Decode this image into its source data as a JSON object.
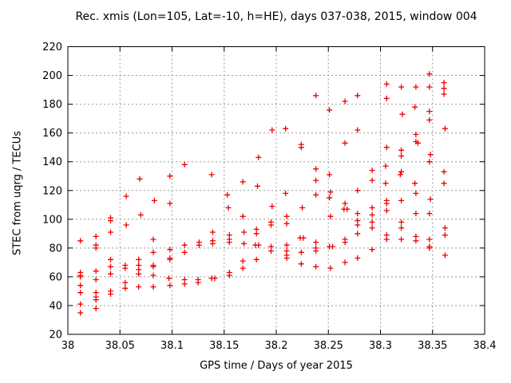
{
  "chart_data": {
    "type": "scatter",
    "title": "Rec. xmis (Lon=105, Lat=-10, h=HE), days 037-038, 2015, window 004",
    "xlabel": "GPS time / Days of year 2015",
    "ylabel": "STEC from uqrg / TECUs",
    "xlim": [
      38,
      38.4
    ],
    "ylim": [
      20,
      220
    ],
    "xticks": [
      38,
      38.05,
      38.1,
      38.15,
      38.2,
      38.25,
      38.3,
      38.35,
      38.4
    ],
    "xtick_labels": [
      "38",
      "38.05",
      "38.1",
      "38.15",
      "38.2",
      "38.25",
      "38.3",
      "38.35",
      "38.4"
    ],
    "yticks": [
      20,
      40,
      60,
      80,
      100,
      120,
      140,
      160,
      180,
      200,
      220
    ],
    "ytick_labels": [
      "20",
      "40",
      "60",
      "80",
      "100",
      "120",
      "140",
      "160",
      "180",
      "200",
      "220"
    ],
    "grid": true,
    "legend": false,
    "marker": "plus",
    "marker_color": "#f00000",
    "grid_color": "#999999",
    "axis_color": "#000000",
    "series": [
      {
        "name": "STEC from uqrg",
        "points": [
          [
            38.012,
            85
          ],
          [
            38.012,
            63
          ],
          [
            38.012,
            61
          ],
          [
            38.012,
            60
          ],
          [
            38.012,
            54
          ],
          [
            38.012,
            49
          ],
          [
            38.012,
            41
          ],
          [
            38.012,
            35
          ],
          [
            38.027,
            88
          ],
          [
            38.027,
            82
          ],
          [
            38.027,
            80
          ],
          [
            38.027,
            64
          ],
          [
            38.027,
            58
          ],
          [
            38.027,
            49
          ],
          [
            38.027,
            46
          ],
          [
            38.027,
            44
          ],
          [
            38.027,
            38
          ],
          [
            38.041,
            101
          ],
          [
            38.041,
            99
          ],
          [
            38.041,
            91
          ],
          [
            38.041,
            72
          ],
          [
            38.041,
            67
          ],
          [
            38.041,
            62
          ],
          [
            38.041,
            50
          ],
          [
            38.041,
            48
          ],
          [
            38.056,
            116
          ],
          [
            38.056,
            96
          ],
          [
            38.055,
            68
          ],
          [
            38.055,
            66
          ],
          [
            38.055,
            56
          ],
          [
            38.055,
            52
          ],
          [
            38.069,
            128
          ],
          [
            38.07,
            103
          ],
          [
            38.068,
            72
          ],
          [
            38.068,
            68
          ],
          [
            38.068,
            65
          ],
          [
            38.068,
            62
          ],
          [
            38.068,
            53
          ],
          [
            38.083,
            113
          ],
          [
            38.082,
            86
          ],
          [
            38.082,
            77
          ],
          [
            38.082,
            68
          ],
          [
            38.082,
            67
          ],
          [
            38.082,
            61
          ],
          [
            38.082,
            53
          ],
          [
            38.098,
            130
          ],
          [
            38.098,
            111
          ],
          [
            38.098,
            79
          ],
          [
            38.098,
            73
          ],
          [
            38.098,
            72
          ],
          [
            38.097,
            59
          ],
          [
            38.098,
            54
          ],
          [
            38.112,
            138
          ],
          [
            38.112,
            82
          ],
          [
            38.112,
            77
          ],
          [
            38.112,
            58
          ],
          [
            38.112,
            55
          ],
          [
            38.126,
            84
          ],
          [
            38.126,
            82
          ],
          [
            38.125,
            58
          ],
          [
            38.125,
            56
          ],
          [
            38.138,
            131
          ],
          [
            38.139,
            91
          ],
          [
            38.139,
            85
          ],
          [
            38.139,
            83
          ],
          [
            38.138,
            59
          ],
          [
            38.141,
            59
          ],
          [
            38.153,
            117
          ],
          [
            38.154,
            108
          ],
          [
            38.155,
            89
          ],
          [
            38.155,
            86
          ],
          [
            38.155,
            84
          ],
          [
            38.155,
            63
          ],
          [
            38.155,
            61
          ],
          [
            38.168,
            126
          ],
          [
            38.168,
            102
          ],
          [
            38.169,
            91
          ],
          [
            38.169,
            83
          ],
          [
            38.168,
            71
          ],
          [
            38.168,
            66
          ],
          [
            38.183,
            143
          ],
          [
            38.182,
            123
          ],
          [
            38.181,
            93
          ],
          [
            38.181,
            90
          ],
          [
            38.18,
            82
          ],
          [
            38.183,
            82
          ],
          [
            38.181,
            72
          ],
          [
            38.196,
            162
          ],
          [
            38.196,
            109
          ],
          [
            38.195,
            98
          ],
          [
            38.195,
            96
          ],
          [
            38.195,
            81
          ],
          [
            38.195,
            78
          ],
          [
            38.209,
            163
          ],
          [
            38.209,
            118
          ],
          [
            38.21,
            102
          ],
          [
            38.21,
            97
          ],
          [
            38.21,
            82
          ],
          [
            38.21,
            78
          ],
          [
            38.21,
            75
          ],
          [
            38.21,
            73
          ],
          [
            38.224,
            152
          ],
          [
            38.224,
            150
          ],
          [
            38.225,
            108
          ],
          [
            38.223,
            87
          ],
          [
            38.226,
            87
          ],
          [
            38.224,
            77
          ],
          [
            38.224,
            69
          ],
          [
            38.238,
            186
          ],
          [
            38.238,
            135
          ],
          [
            38.238,
            127
          ],
          [
            38.238,
            117
          ],
          [
            38.238,
            84
          ],
          [
            38.238,
            80
          ],
          [
            38.238,
            78
          ],
          [
            38.238,
            67
          ],
          [
            38.251,
            176
          ],
          [
            38.251,
            131
          ],
          [
            38.252,
            119
          ],
          [
            38.251,
            115
          ],
          [
            38.252,
            102
          ],
          [
            38.251,
            81
          ],
          [
            38.254,
            81
          ],
          [
            38.252,
            66
          ],
          [
            38.266,
            182
          ],
          [
            38.266,
            153
          ],
          [
            38.266,
            111
          ],
          [
            38.265,
            107
          ],
          [
            38.268,
            107
          ],
          [
            38.266,
            86
          ],
          [
            38.266,
            84
          ],
          [
            38.266,
            70
          ],
          [
            38.278,
            186
          ],
          [
            38.278,
            162
          ],
          [
            38.278,
            120
          ],
          [
            38.278,
            104
          ],
          [
            38.278,
            99
          ],
          [
            38.278,
            96
          ],
          [
            38.278,
            90
          ],
          [
            38.278,
            73
          ],
          [
            38.292,
            134
          ],
          [
            38.292,
            127
          ],
          [
            38.292,
            108
          ],
          [
            38.292,
            103
          ],
          [
            38.292,
            98
          ],
          [
            38.292,
            94
          ],
          [
            38.292,
            79
          ],
          [
            38.306,
            194
          ],
          [
            38.306,
            184
          ],
          [
            38.306,
            150
          ],
          [
            38.305,
            137
          ],
          [
            38.305,
            125
          ],
          [
            38.306,
            113
          ],
          [
            38.306,
            111
          ],
          [
            38.306,
            106
          ],
          [
            38.306,
            89
          ],
          [
            38.306,
            86
          ],
          [
            38.32,
            192
          ],
          [
            38.321,
            173
          ],
          [
            38.32,
            148
          ],
          [
            38.32,
            144
          ],
          [
            38.32,
            133
          ],
          [
            38.319,
            131
          ],
          [
            38.32,
            113
          ],
          [
            38.32,
            98
          ],
          [
            38.32,
            94
          ],
          [
            38.32,
            86
          ],
          [
            38.334,
            192
          ],
          [
            38.333,
            178
          ],
          [
            38.334,
            159
          ],
          [
            38.334,
            154
          ],
          [
            38.336,
            153
          ],
          [
            38.333,
            125
          ],
          [
            38.334,
            118
          ],
          [
            38.334,
            104
          ],
          [
            38.334,
            88
          ],
          [
            38.334,
            85
          ],
          [
            38.347,
            201
          ],
          [
            38.347,
            192
          ],
          [
            38.347,
            175
          ],
          [
            38.347,
            169
          ],
          [
            38.348,
            145
          ],
          [
            38.347,
            140
          ],
          [
            38.348,
            114
          ],
          [
            38.347,
            104
          ],
          [
            38.347,
            86
          ],
          [
            38.347,
            81
          ],
          [
            38.347,
            80
          ],
          [
            38.361,
            195
          ],
          [
            38.361,
            191
          ],
          [
            38.361,
            187
          ],
          [
            38.362,
            163
          ],
          [
            38.361,
            133
          ],
          [
            38.361,
            125
          ],
          [
            38.362,
            94
          ],
          [
            38.362,
            89
          ],
          [
            38.362,
            75
          ]
        ]
      }
    ]
  }
}
